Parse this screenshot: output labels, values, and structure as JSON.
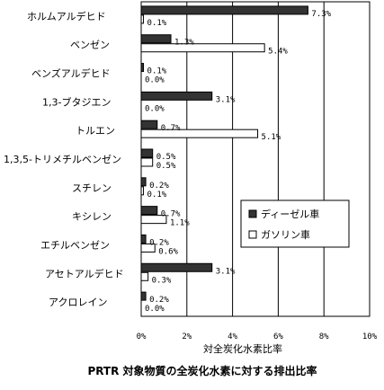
{
  "chart_data": {
    "type": "bar",
    "orientation": "horizontal",
    "title": "PRTR 対象物質の全炭化水素に対する排出比率",
    "xlabel": "対全炭化水素比率",
    "xlim": [
      0,
      10
    ],
    "x_ticks": [
      "0%",
      "2%",
      "4%",
      "6%",
      "8%",
      "10%"
    ],
    "grid": true,
    "legend_position": "right",
    "categories": [
      "ホルムアルデヒド",
      "ベンゼン",
      "ベンズアルデヒド",
      "1,3-ブタジエン",
      "トルエン",
      "1,3,5-トリメチルベンゼン",
      "スチレン",
      "キシレン",
      "エチルベンゼン",
      "アセトアルデヒド",
      "アクロレイン"
    ],
    "series": [
      {
        "name": "ディーゼル車",
        "color": "#333333",
        "values": [
          7.3,
          1.3,
          0.1,
          3.1,
          0.7,
          0.5,
          0.2,
          0.7,
          0.2,
          3.1,
          0.2
        ],
        "labels": [
          "7.3%",
          "1.3%",
          "0.1%",
          "3.1%",
          "0.7%",
          "0.5%",
          "0.2%",
          "0.7%",
          "0.2%",
          "3.1%",
          "0.2%"
        ]
      },
      {
        "name": "ガソリン車",
        "color": "#ffffff",
        "values": [
          0.1,
          5.4,
          0.0,
          0.0,
          5.1,
          0.5,
          0.1,
          1.1,
          0.6,
          0.3,
          0.0
        ],
        "labels": [
          "0.1%",
          "5.4%",
          "0.0%",
          "0.0%",
          "5.1%",
          "0.5%",
          "0.1%",
          "1.1%",
          "0.6%",
          "0.3%",
          "0.0%"
        ]
      }
    ]
  }
}
